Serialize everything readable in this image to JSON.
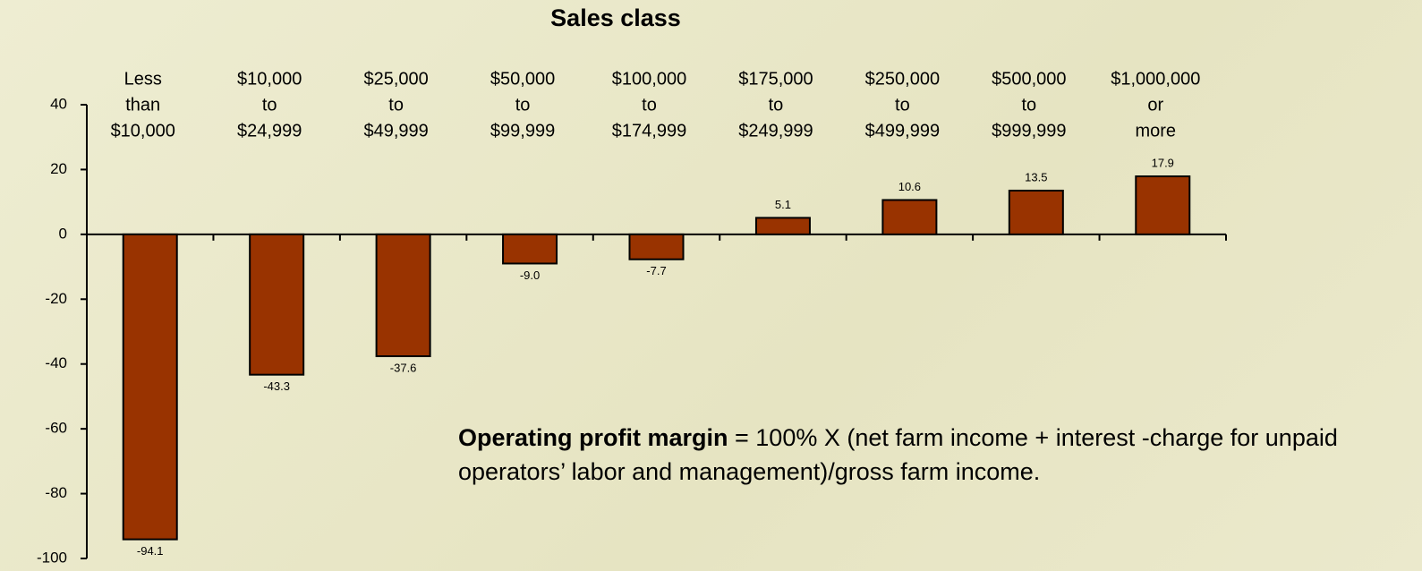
{
  "chart_data": {
    "type": "bar",
    "title": "Sales class",
    "categories": [
      [
        "Less",
        "than",
        "$10,000"
      ],
      [
        "$10,000",
        "to",
        "$24,999"
      ],
      [
        "$25,000",
        "to",
        "$49,999"
      ],
      [
        "$50,000",
        "to",
        "$99,999"
      ],
      [
        "$100,000",
        "to",
        "$174,999"
      ],
      [
        "$175,000",
        "to",
        "$249,999"
      ],
      [
        "$250,000",
        "to",
        "$499,999"
      ],
      [
        "$500,000",
        "to",
        "$999,999"
      ],
      [
        "$1,000,000",
        "or",
        "more"
      ]
    ],
    "values": [
      -94.1,
      -43.3,
      -37.6,
      -9.0,
      -7.7,
      5.1,
      10.6,
      13.5,
      17.9
    ],
    "value_labels": [
      "-94.1",
      "-43.3",
      "-37.6",
      "-9.0",
      "-7.7",
      "5.1",
      "10.6",
      "13.5",
      "17.9"
    ],
    "color": "#993300",
    "ylim": [
      -100,
      40
    ],
    "yticks": [
      -100,
      -80,
      -60,
      -40,
      -20,
      0,
      20,
      40
    ],
    "grid": false,
    "annotation": {
      "bold": "Operating profit margin",
      "text": " = 100% X (net farm income + interest -charge for unpaid operators’ labor and management)/gross farm income."
    }
  }
}
